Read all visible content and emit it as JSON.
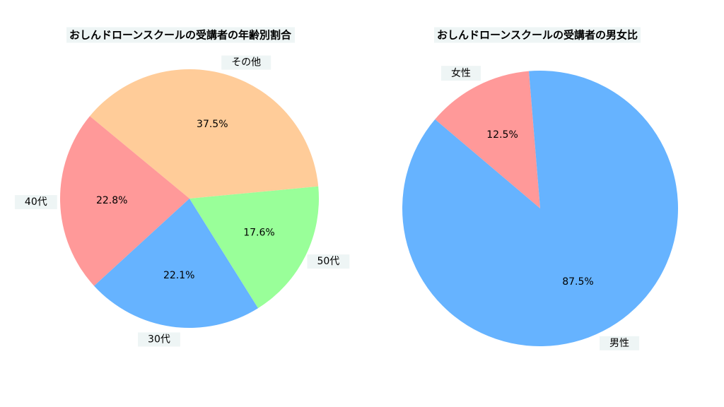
{
  "chart_data": [
    {
      "type": "pie",
      "title": "おしんドローンスクールの受講者の年齢別割合",
      "categories": [
        "その他",
        "40代",
        "30代",
        "50代"
      ],
      "values": [
        37.5,
        22.8,
        22.1,
        17.6
      ],
      "value_labels": [
        "37.5%",
        "22.8%",
        "22.1%",
        "17.6%"
      ],
      "colors": [
        "#ffcc99",
        "#ff9999",
        "#66b3ff",
        "#99ff99"
      ]
    },
    {
      "type": "pie",
      "title": "おしんドローンスクールの受講者の男女比",
      "categories": [
        "女性",
        "男性"
      ],
      "values": [
        12.5,
        87.5
      ],
      "value_labels": [
        "12.5%",
        "87.5%"
      ],
      "colors": [
        "#ff9999",
        "#66b3ff"
      ]
    }
  ]
}
